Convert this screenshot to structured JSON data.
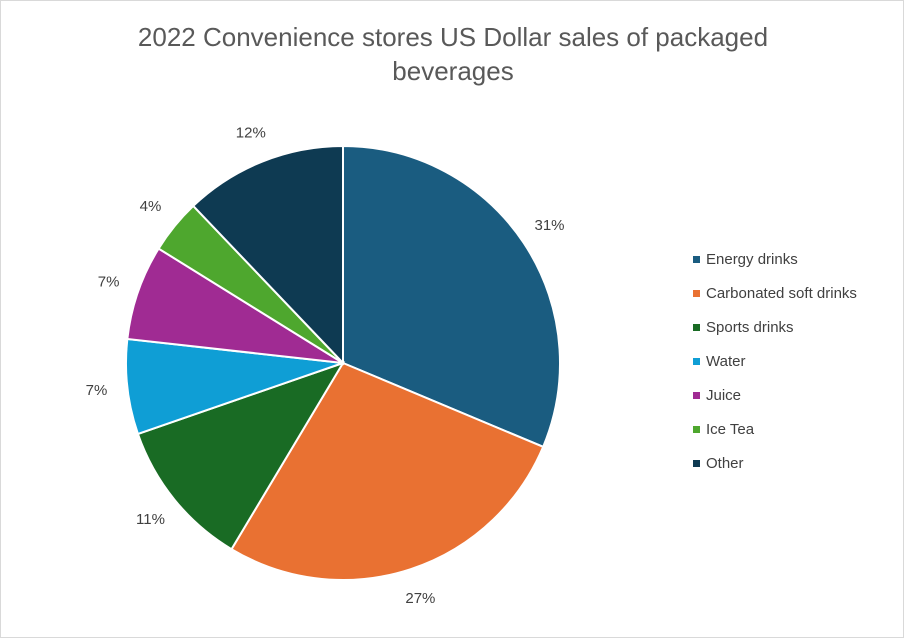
{
  "chart_data": {
    "type": "pie",
    "title": "2022 Convenience stores US Dollar sales of packaged beverages",
    "title_lines": [
      "2022 Convenience stores US Dollar sales of packaged",
      "beverages"
    ],
    "categories": [
      "Energy drinks",
      "Carbonated soft drinks",
      "Sports drinks",
      "Water",
      "Juice",
      "Ice Tea",
      "Other"
    ],
    "values": [
      31,
      27,
      11,
      7,
      7,
      4,
      12
    ],
    "labels": [
      "31%",
      "27%",
      "11%",
      "7%",
      "7%",
      "4%",
      "12%"
    ],
    "colors": [
      "#1a5c80",
      "#e97132",
      "#196b24",
      "#0f9ed5",
      "#a02b93",
      "#4ea72e",
      "#0e3a52"
    ],
    "legend_position": "right"
  }
}
